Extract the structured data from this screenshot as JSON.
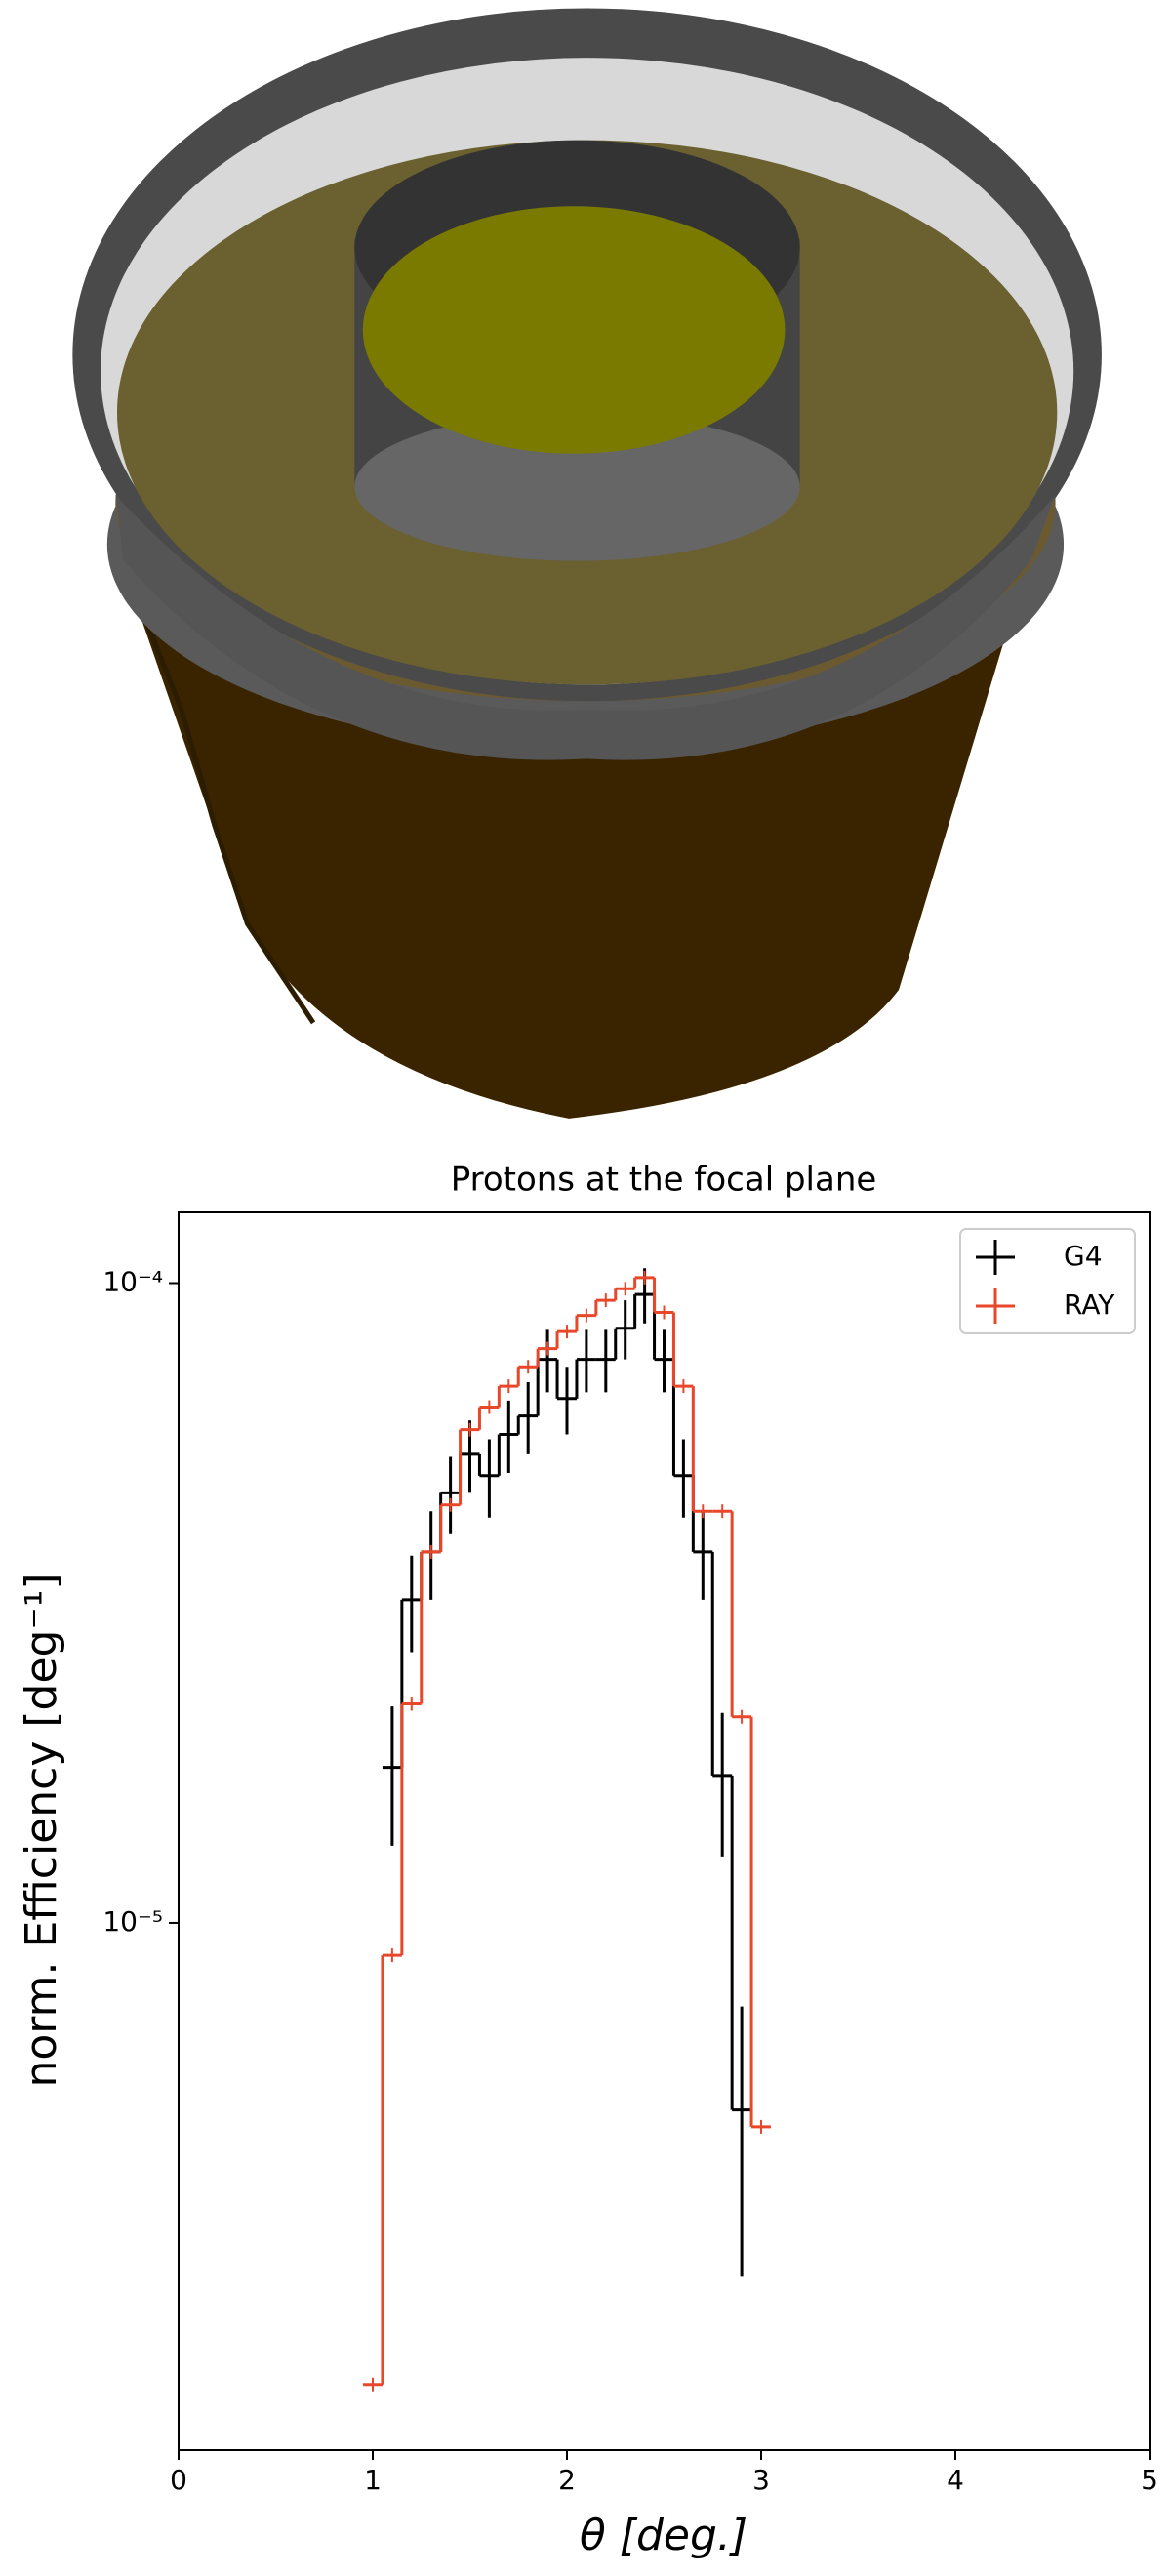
{
  "chart_data": {
    "type": "step-errorbar",
    "title": "Protons at the focal plane",
    "xlabel": "θ [deg.]",
    "ylabel": "norm. Efficiency [deg⁻¹]",
    "xlim": [
      0,
      5
    ],
    "xticks": [
      0,
      1,
      2,
      3,
      4,
      5
    ],
    "ylim": [
      1.5e-06,
      0.000129
    ],
    "log_y": true,
    "yticks": [
      {
        "value": 1e-05,
        "label": "10⁻⁵"
      },
      {
        "value": 0.0001,
        "label": "10⁻⁴"
      }
    ],
    "legend": "upper right",
    "series": [
      {
        "name": "G4",
        "color": "#000000",
        "x": [
          1.1,
          1.2,
          1.3,
          1.4,
          1.5,
          1.6,
          1.7,
          1.8,
          1.9,
          2.0,
          2.1,
          2.2,
          2.3,
          2.4,
          2.5,
          2.6,
          2.7,
          2.8,
          2.9
        ],
        "values": [
          1.75e-05,
          3.2e-05,
          3.8e-05,
          4.7e-05,
          5.4e-05,
          5e-05,
          5.8e-05,
          6.2e-05,
          7.6e-05,
          6.6e-05,
          7.6e-05,
          7.6e-05,
          8.5e-05,
          9.6e-05,
          7.6e-05,
          5e-05,
          3.8e-05,
          1.7e-05,
          5.1e-06
        ],
        "errors": [
          4.3e-06,
          5.5e-06,
          6e-06,
          6.5e-06,
          7e-06,
          7e-06,
          7.5e-06,
          8e-06,
          8.5e-06,
          8e-06,
          8.5e-06,
          8.5e-06,
          9e-06,
          9.5e-06,
          8.5e-06,
          7e-06,
          6e-06,
          4.3e-06,
          2.3e-06
        ]
      },
      {
        "name": "RAY",
        "color": "#e8472a",
        "x": [
          1.0,
          1.1,
          1.2,
          1.3,
          1.4,
          1.5,
          1.6,
          1.7,
          1.8,
          1.9,
          2.0,
          2.1,
          2.2,
          2.3,
          2.4,
          2.5,
          2.6,
          2.7,
          2.8,
          2.9,
          3.0
        ],
        "values": [
          1.9e-06,
          8.9e-06,
          2.2e-05,
          3.8e-05,
          4.5e-05,
          5.9e-05,
          6.4e-05,
          6.9e-05,
          7.4e-05,
          7.9e-05,
          8.4e-05,
          8.9e-05,
          9.4e-05,
          9.8e-05,
          0.000102,
          9e-05,
          6.9e-05,
          4.4e-05,
          4.4e-05,
          2.1e-05,
          4.8e-06
        ]
      }
    ]
  }
}
